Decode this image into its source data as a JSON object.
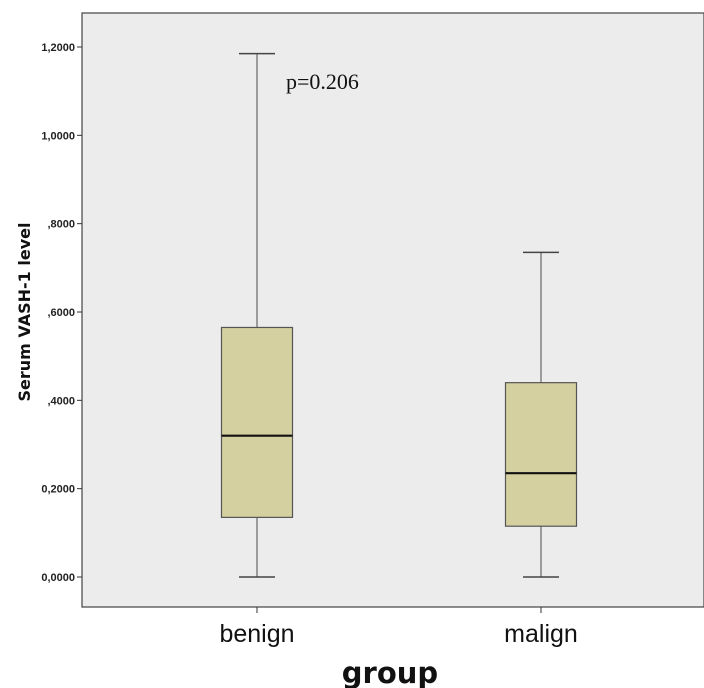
{
  "chart_data": {
    "type": "boxplot",
    "title": "",
    "xlabel": "group",
    "ylabel": "Serum VASH-1 level",
    "ylim": [
      -0.07,
      1.27
    ],
    "yticks": [
      {
        "value": 0.0,
        "label": "0,0000"
      },
      {
        "value": 0.2,
        "label": "0,2000"
      },
      {
        "value": 0.4,
        "label": ",4000"
      },
      {
        "value": 0.6,
        "label": ",6000"
      },
      {
        "value": 0.8,
        "label": ",8000"
      },
      {
        "value": 1.0,
        "label": "1,0000"
      },
      {
        "value": 1.2,
        "label": "1,2000"
      }
    ],
    "grid": false,
    "legend": "none",
    "background_color": "#ececec",
    "box_color": "#d5d09f",
    "annotation": "p=0.206",
    "categories": [
      "benign",
      "malign"
    ],
    "boxes": [
      {
        "category": "benign",
        "min": 0.0,
        "q1": 0.135,
        "median": 0.32,
        "q3": 0.565,
        "max": 1.185
      },
      {
        "category": "malign",
        "min": 0.0,
        "q1": 0.115,
        "median": 0.235,
        "q3": 0.44,
        "max": 0.735
      }
    ]
  }
}
